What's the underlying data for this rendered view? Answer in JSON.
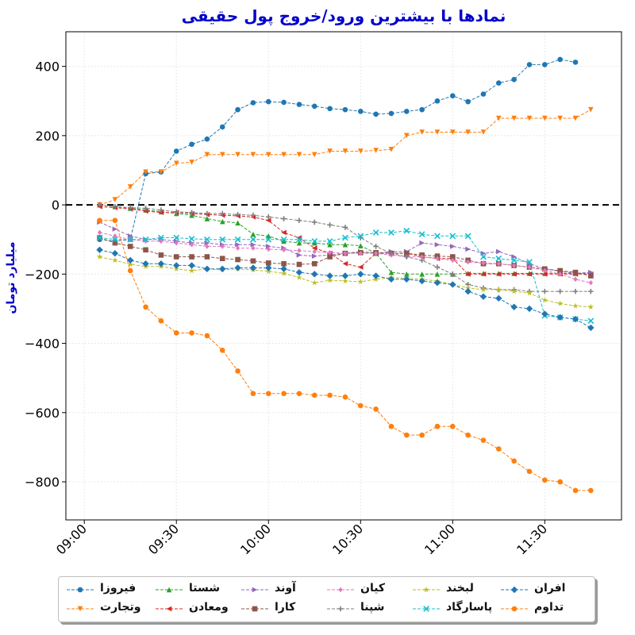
{
  "chart_data": {
    "type": "line",
    "title": "نمادها با بیشترین ورود/خروج پول حقیقی",
    "xlabel": "",
    "ylabel": "میلیارد تومان",
    "ylim": [
      -910,
      500
    ],
    "x_range": [
      "08:54",
      "11:55"
    ],
    "x_ticks": [
      "09:00",
      "09:30",
      "10:00",
      "10:30",
      "11:00",
      "11:30"
    ],
    "y_ticks": [
      400,
      200,
      0,
      -200,
      -400,
      -600,
      -800
    ],
    "zero_line": {
      "value": 0,
      "style": "dashed",
      "color": "#000000"
    },
    "grid": true,
    "legend_location": "bottom",
    "legend_columns": 6,
    "x": [
      "09:05",
      "09:10",
      "09:15",
      "09:20",
      "09:25",
      "09:30",
      "09:35",
      "09:40",
      "09:45",
      "09:50",
      "09:55",
      "10:00",
      "10:05",
      "10:10",
      "10:15",
      "10:20",
      "10:25",
      "10:30",
      "10:35",
      "10:40",
      "10:45",
      "10:50",
      "10:55",
      "11:00",
      "11:05",
      "11:10",
      "11:15",
      "11:20",
      "11:25",
      "11:30",
      "11:35",
      "11:40",
      "11:45"
    ],
    "series": [
      {
        "name": "فیروزا",
        "color": "#1f77b4",
        "marker": "circle",
        "values": [
          -100,
          -105,
          -100,
          90,
          95,
          155,
          175,
          190,
          225,
          275,
          295,
          298,
          296,
          290,
          285,
          278,
          275,
          270,
          262,
          264,
          270,
          275,
          300,
          315,
          298,
          320,
          352,
          362,
          405,
          405,
          420,
          412,
          null
        ]
      },
      {
        "name": "وتجارت",
        "color": "#ff7f0e",
        "marker": "triangle-down",
        "values": [
          0,
          15,
          52,
          95,
          95,
          120,
          123,
          145,
          145,
          145,
          145,
          145,
          145,
          145,
          145,
          155,
          155,
          155,
          157,
          160,
          200,
          210,
          210,
          210,
          210,
          210,
          250,
          250,
          250,
          250,
          250,
          250,
          275
        ]
      },
      {
        "name": "شستا",
        "color": "#2ca02c",
        "marker": "triangle-up",
        "values": [
          0,
          -5,
          -10,
          -15,
          -20,
          -25,
          -30,
          -40,
          -48,
          -52,
          -85,
          -90,
          -105,
          -110,
          -110,
          -115,
          -115,
          -118,
          -140,
          -195,
          -200,
          -200,
          -200,
          -200,
          -198,
          -198,
          -198,
          -198,
          -198,
          -198,
          -198,
          -198,
          -198
        ]
      },
      {
        "name": "ومعادن",
        "color": "#d62728",
        "marker": "triangle-left",
        "values": [
          -5,
          -8,
          -12,
          -18,
          -22,
          -22,
          -25,
          -28,
          -30,
          -32,
          -35,
          -45,
          -80,
          -95,
          -125,
          -140,
          -170,
          -180,
          -140,
          -140,
          -140,
          -150,
          -155,
          -155,
          -200,
          -200,
          -200,
          -200,
          -200,
          -200,
          -200,
          -200,
          -200
        ]
      },
      {
        "name": "آوند",
        "color": "#9467bd",
        "marker": "triangle-right",
        "values": [
          -50,
          -70,
          -90,
          -100,
          -100,
          -105,
          -110,
          -110,
          -115,
          -115,
          -115,
          -120,
          -125,
          -145,
          -148,
          -145,
          -140,
          -135,
          -140,
          -135,
          -135,
          -110,
          -115,
          -120,
          -128,
          -140,
          -135,
          -150,
          -170,
          -185,
          -192,
          -198,
          -195
        ]
      },
      {
        "name": "کارا",
        "color": "#8c564b",
        "marker": "square",
        "values": [
          -95,
          -110,
          -120,
          -130,
          -145,
          -150,
          -150,
          -150,
          -155,
          -158,
          -162,
          -168,
          -170,
          -172,
          -170,
          -150,
          -140,
          -138,
          -138,
          -140,
          -140,
          -145,
          -148,
          -150,
          -160,
          -170,
          -170,
          -175,
          -180,
          -185,
          -190,
          -195,
          -205
        ]
      },
      {
        "name": "کیان",
        "color": "#e377c2",
        "marker": "diamond",
        "values": [
          -80,
          -90,
          -100,
          -105,
          -105,
          -110,
          -115,
          -120,
          -120,
          -125,
          -125,
          -128,
          -130,
          -132,
          -135,
          -138,
          -140,
          -140,
          -140,
          -145,
          -150,
          -150,
          -155,
          -160,
          -165,
          -168,
          -170,
          -175,
          -180,
          -190,
          -200,
          -215,
          -225
        ]
      },
      {
        "name": "شپنا",
        "color": "#7f7f7f",
        "marker": "plus",
        "values": [
          0,
          -5,
          -8,
          -10,
          -15,
          -20,
          -22,
          -25,
          -25,
          -28,
          -30,
          -35,
          -40,
          -45,
          -50,
          -58,
          -65,
          -95,
          -120,
          -140,
          -150,
          -160,
          -180,
          -200,
          -230,
          -240,
          -245,
          -245,
          -250,
          -250,
          -250,
          -250,
          -250
        ]
      },
      {
        "name": "لبخند",
        "color": "#bcbd22",
        "marker": "star",
        "values": [
          -150,
          -160,
          -172,
          -178,
          -178,
          -185,
          -190,
          -185,
          -188,
          -185,
          -188,
          -192,
          -198,
          -210,
          -225,
          -218,
          -220,
          -222,
          -215,
          -210,
          -212,
          -215,
          -220,
          -230,
          -240,
          -245,
          -245,
          -250,
          -255,
          -275,
          -285,
          -292,
          -295
        ]
      },
      {
        "name": "پاسارگاد",
        "color": "#17becf",
        "marker": "x",
        "values": [
          -95,
          -100,
          -100,
          -100,
          -95,
          -95,
          -98,
          -100,
          -100,
          -100,
          -100,
          -100,
          -100,
          -100,
          -105,
          -105,
          -95,
          -90,
          -80,
          -80,
          -75,
          -85,
          -90,
          -90,
          -90,
          -150,
          -155,
          -160,
          -165,
          -320,
          -325,
          -330,
          -335
        ]
      },
      {
        "name": "افران",
        "color": "#1f77b4",
        "marker": "diamond-bold",
        "values": [
          -130,
          -140,
          -160,
          -170,
          -170,
          -175,
          -175,
          -185,
          -185,
          -182,
          -182,
          -182,
          -185,
          -195,
          -200,
          -205,
          -205,
          -200,
          -205,
          -215,
          -215,
          -220,
          -225,
          -230,
          -250,
          -265,
          -270,
          -295,
          -300,
          -315,
          -325,
          -330,
          -355
        ]
      },
      {
        "name": "تداوم",
        "color": "#ff7f0e",
        "marker": "circle",
        "values": [
          -45,
          -45,
          -190,
          -295,
          -335,
          -370,
          -370,
          -378,
          -420,
          -480,
          -545,
          -545,
          -545,
          -545,
          -550,
          -550,
          -555,
          -580,
          -590,
          -640,
          -665,
          -665,
          -640,
          -640,
          -665,
          -680,
          -705,
          -740,
          -770,
          -795,
          -800,
          -825,
          -825
        ]
      }
    ]
  }
}
